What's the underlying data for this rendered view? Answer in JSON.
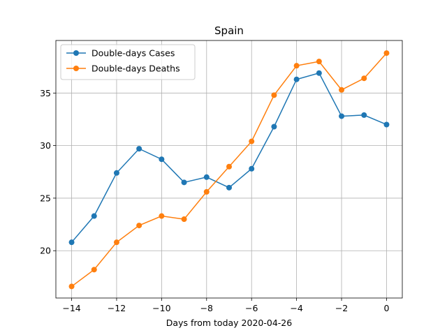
{
  "chart_data": {
    "type": "line",
    "title": "Spain",
    "xlabel": "Days from today 2020-04-26",
    "ylabel": "",
    "x": [
      -14,
      -13,
      -12,
      -11,
      -10,
      -9,
      -8,
      -7,
      -6,
      -5,
      -4,
      -3,
      -2,
      -1,
      0
    ],
    "xlim": [
      -14.7,
      0.7
    ],
    "ylim": [
      15.5,
      40.0
    ],
    "xticks": [
      -14,
      -12,
      -10,
      -8,
      -6,
      -4,
      -2,
      0
    ],
    "xtick_labels": [
      "−14",
      "−12",
      "−10",
      "−8",
      "−6",
      "−4",
      "−2",
      "0"
    ],
    "yticks": [
      20,
      25,
      30,
      35
    ],
    "ytick_labels": [
      "20",
      "25",
      "30",
      "35"
    ],
    "grid": true,
    "legend_position": "top-left",
    "series": [
      {
        "name": "Double-days Cases",
        "color": "#1f77b4",
        "values": [
          20.8,
          23.3,
          27.4,
          29.7,
          28.7,
          26.5,
          27.0,
          26.0,
          27.8,
          31.8,
          36.3,
          36.9,
          32.8,
          32.9,
          32.0
        ]
      },
      {
        "name": "Double-days Deaths",
        "color": "#ff7f0e",
        "values": [
          16.6,
          18.2,
          20.8,
          22.4,
          23.3,
          23.0,
          25.6,
          28.0,
          30.4,
          34.8,
          37.6,
          38.0,
          35.3,
          36.4,
          38.8
        ]
      }
    ]
  }
}
